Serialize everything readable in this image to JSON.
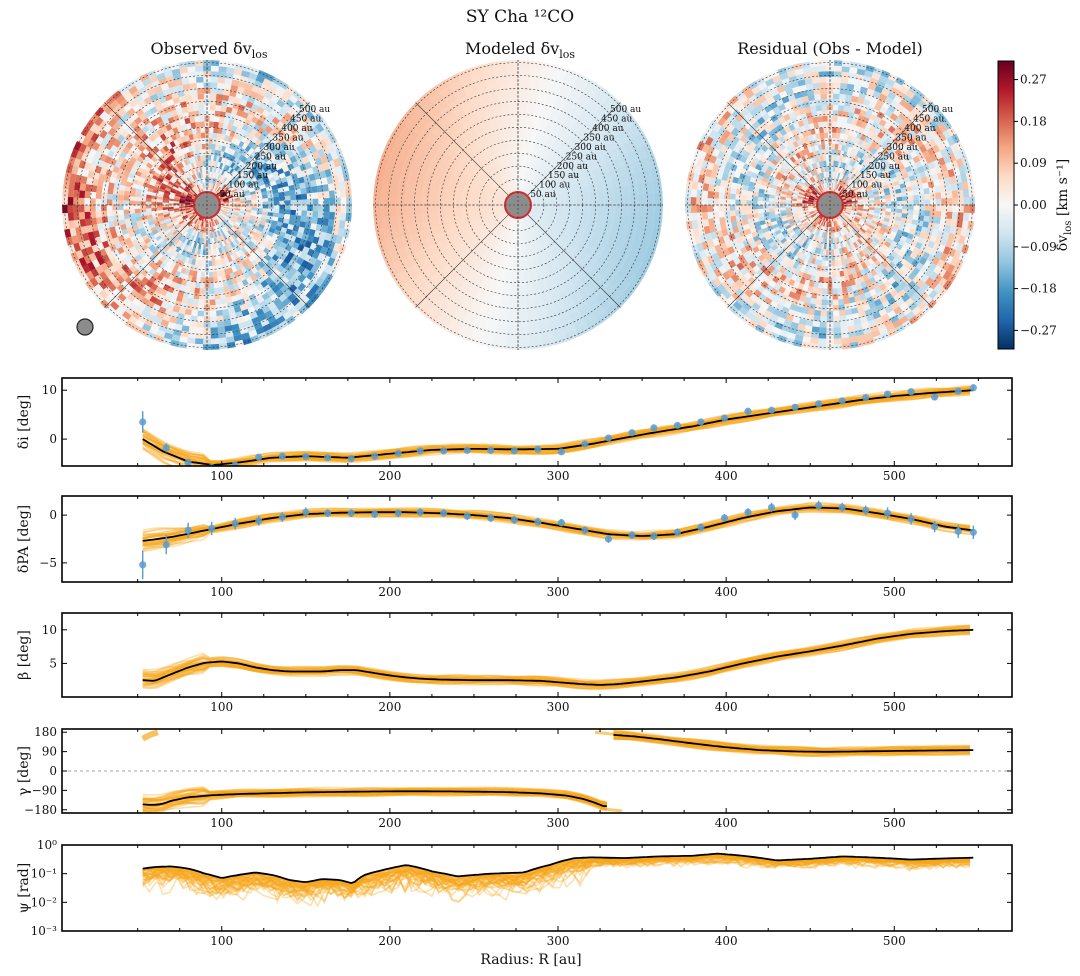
{
  "figure": {
    "title": "SY Cha ¹²CO",
    "maps": [
      {
        "title": "Observed δv",
        "sub": "los",
        "kind": "observed"
      },
      {
        "title": "Modeled δv",
        "sub": "los",
        "kind": "model"
      },
      {
        "title": "Residual (Obs - Model)",
        "sub": "",
        "kind": "residual"
      }
    ],
    "ring_labels": [
      "500 au",
      "450 au",
      "400 au",
      "350 au",
      "300 au",
      "250 au",
      "200 au",
      "150 au",
      "100 au",
      "50 au"
    ],
    "colorbar": {
      "label": "δv",
      "label_sub": "los",
      "label_units": "[km s⁻¹]",
      "ticks": [
        "0.27",
        "0.18",
        "0.09",
        "0.00",
        "−0.09",
        "−0.18",
        "−0.27"
      ],
      "tick_values": [
        0.27,
        0.18,
        0.09,
        0.0,
        -0.09,
        -0.18,
        -0.27
      ],
      "range": [
        -0.31,
        0.31
      ],
      "colors": [
        "#053061",
        "#2166ac",
        "#4393c3",
        "#92c5de",
        "#d1e5f0",
        "#f7f7f7",
        "#fddbc7",
        "#f4a582",
        "#d6604d",
        "#b2182b",
        "#67001f"
      ]
    },
    "xlabel": "Radius: R [au]",
    "xticks": [
      "100",
      "200",
      "300",
      "400",
      "500"
    ],
    "colors": {
      "band": "#f7a61b",
      "points": "#5b9bcf",
      "line": "#000000"
    }
  },
  "chart_data": [
    {
      "type": "line",
      "ylabel": "δi [deg]",
      "xlim": [
        5,
        570
      ],
      "ylim": [
        -5.5,
        12.5
      ],
      "yticks": [
        "10",
        "0"
      ],
      "ytick_values": [
        10,
        0
      ],
      "series": [
        {
          "name": "model",
          "x": [
            53,
            65,
            80,
            95,
            110,
            130,
            150,
            175,
            200,
            225,
            250,
            275,
            300,
            320,
            340,
            360,
            380,
            400,
            420,
            440,
            460,
            480,
            500,
            520,
            547
          ],
          "y": [
            0,
            -2.5,
            -4.6,
            -5.3,
            -4.8,
            -3.8,
            -3.5,
            -3.8,
            -3,
            -2.2,
            -2,
            -2.1,
            -2,
            -1,
            0.3,
            1.5,
            2.6,
            4,
            5,
            6,
            7,
            8,
            8.8,
            9.4,
            10
          ]
        },
        {
          "name": "observed",
          "x": [
            53,
            67,
            80,
            94,
            108,
            122,
            136,
            150,
            163,
            177,
            191,
            205,
            218,
            232,
            246,
            260,
            274,
            288,
            302,
            316,
            330,
            344,
            357,
            371,
            385,
            399,
            413,
            427,
            441,
            455,
            469,
            483,
            496,
            510,
            524,
            538,
            547
          ],
          "y": [
            3.5,
            -1.8,
            -4.8,
            -5.8,
            -5.3,
            -3.7,
            -3.5,
            -3.6,
            -3.8,
            -4,
            -3.5,
            -2.9,
            -2.4,
            -2.4,
            -2.3,
            -2.3,
            -2.4,
            -2.1,
            -2.6,
            -1,
            0.2,
            1.3,
            2.3,
            2.8,
            3.5,
            4.3,
            5.7,
            5.9,
            6.5,
            7.2,
            7.8,
            8.5,
            9.2,
            9.7,
            8.6,
            9.8,
            10.5
          ],
          "err": [
            2.2,
            0.9,
            0.7,
            0.6,
            0.5,
            0.5,
            0.5,
            0.4,
            0.4,
            0.4,
            0.4,
            0.4,
            0.4,
            0.4,
            0.4,
            0.4,
            0.4,
            0.4,
            0.4,
            0.4,
            0.4,
            0.4,
            0.4,
            0.4,
            0.4,
            0.4,
            0.4,
            0.4,
            0.4,
            0.4,
            0.4,
            0.4,
            0.4,
            0.4,
            0.6,
            0.5,
            0.6
          ]
        }
      ]
    },
    {
      "type": "line",
      "ylabel": "δPA [deg]",
      "xlim": [
        5,
        570
      ],
      "ylim": [
        -7,
        2
      ],
      "yticks": [
        "0",
        "−5"
      ],
      "ytick_values": [
        0,
        -5
      ],
      "series": [
        {
          "name": "model",
          "x": [
            53,
            70,
            90,
            110,
            130,
            150,
            170,
            190,
            210,
            230,
            250,
            270,
            290,
            310,
            330,
            350,
            370,
            390,
            410,
            430,
            450,
            470,
            490,
            510,
            530,
            547
          ],
          "y": [
            -2.7,
            -2.3,
            -1.6,
            -0.9,
            -0.3,
            0.1,
            0.25,
            0.3,
            0.3,
            0.2,
            0,
            -0.3,
            -0.8,
            -1.4,
            -2,
            -2.2,
            -2,
            -1.2,
            -0.3,
            0.4,
            0.8,
            0.7,
            0.2,
            -0.4,
            -1.2,
            -1.6
          ]
        },
        {
          "name": "observed",
          "x": [
            53,
            67,
            80,
            94,
            108,
            122,
            136,
            150,
            163,
            177,
            191,
            205,
            218,
            232,
            246,
            260,
            274,
            288,
            302,
            316,
            330,
            344,
            357,
            371,
            385,
            399,
            413,
            427,
            441,
            455,
            469,
            483,
            496,
            510,
            524,
            538,
            547
          ],
          "y": [
            -5.2,
            -3.1,
            -1.6,
            -1.4,
            -0.9,
            -0.6,
            -0.2,
            0.3,
            0.2,
            0.2,
            0.1,
            0.2,
            0.3,
            0.2,
            -0.1,
            -0.3,
            -0.5,
            -0.7,
            -0.8,
            -1.6,
            -2.5,
            -2.1,
            -2.2,
            -1.8,
            -1.3,
            -0.3,
            0.3,
            0.8,
            0,
            1,
            0.8,
            0.5,
            0.2,
            -0.4,
            -1.2,
            -1.7,
            -1.8
          ],
          "err": [
            1.5,
            1,
            0.8,
            0.7,
            0.6,
            0.5,
            0.5,
            0.5,
            0.4,
            0.4,
            0.4,
            0.4,
            0.4,
            0.4,
            0.4,
            0.4,
            0.4,
            0.4,
            0.4,
            0.4,
            0.4,
            0.4,
            0.4,
            0.4,
            0.4,
            0.4,
            0.4,
            0.5,
            0.5,
            0.5,
            0.5,
            0.5,
            0.6,
            0.6,
            0.6,
            0.7,
            0.7
          ]
        }
      ]
    },
    {
      "type": "line",
      "ylabel": "β [deg]",
      "xlim": [
        5,
        570
      ],
      "ylim": [
        0,
        12.5
      ],
      "yticks": [
        "10",
        "5"
      ],
      "ytick_values": [
        10,
        5
      ],
      "series": [
        {
          "name": "model",
          "x": [
            53,
            60,
            70,
            80,
            90,
            100,
            110,
            120,
            130,
            140,
            150,
            160,
            170,
            180,
            190,
            200,
            210,
            220,
            230,
            250,
            270,
            290,
            305,
            315,
            325,
            335,
            350,
            370,
            390,
            410,
            430,
            450,
            470,
            490,
            510,
            530,
            547
          ],
          "y": [
            2.5,
            2.4,
            3.4,
            4.4,
            5.1,
            5.3,
            5,
            4.4,
            4,
            3.8,
            3.8,
            3.8,
            4,
            4,
            3.6,
            3.2,
            2.9,
            2.7,
            2.6,
            2.5,
            2.5,
            2.4,
            2.1,
            1.9,
            1.8,
            1.9,
            2.3,
            2.9,
            3.8,
            5,
            6,
            6.8,
            7.7,
            8.7,
            9.4,
            9.8,
            10
          ]
        }
      ]
    },
    {
      "type": "line",
      "ylabel": "γ [deg]",
      "xlim": [
        5,
        570
      ],
      "ylim": [
        -195,
        195
      ],
      "yticks": [
        "180",
        "90",
        "0",
        "−90",
        "−180"
      ],
      "ytick_values": [
        180,
        90,
        0,
        -90,
        -180
      ],
      "series": [
        {
          "name": "model_low",
          "x": [
            53,
            58,
            62,
            66,
            70,
            80,
            95,
            110,
            130,
            150,
            180,
            210,
            240,
            270,
            290,
            305,
            315,
            320,
            325,
            328,
            330
          ],
          "y": [
            -155,
            -158,
            -156,
            -150,
            -138,
            -122,
            -112,
            -107,
            -103,
            -99,
            -96,
            -94,
            -95,
            -98,
            -104,
            -114,
            -130,
            -142,
            -157,
            -166,
            -160
          ]
        },
        {
          "name": "model_high",
          "x": [
            333,
            345,
            360,
            380,
            400,
            420,
            440,
            460,
            480,
            500,
            520,
            547
          ],
          "y": [
            168,
            161,
            148,
            128,
            110,
            97,
            91,
            89,
            91,
            93,
            95,
            97
          ]
        }
      ]
    },
    {
      "type": "line",
      "ylabel": "ψ [rad]",
      "xlim": [
        5,
        570
      ],
      "ylim_log10": [
        -3,
        0
      ],
      "yticks": [
        "10⁰",
        "10⁻¹",
        "10⁻²",
        "10⁻³"
      ],
      "ytick_values": [
        1,
        0.1,
        0.01,
        0.001
      ],
      "series": [
        {
          "name": "model",
          "x": [
            53,
            60,
            70,
            80,
            90,
            100,
            110,
            120,
            130,
            140,
            150,
            160,
            170,
            178,
            185,
            195,
            210,
            225,
            240,
            260,
            280,
            295,
            310,
            320,
            340,
            360,
            380,
            395,
            410,
            430,
            450,
            470,
            490,
            510,
            530,
            547
          ],
          "y": [
            0.15,
            0.17,
            0.18,
            0.15,
            0.1,
            0.07,
            0.09,
            0.11,
            0.09,
            0.06,
            0.05,
            0.065,
            0.06,
            0.045,
            0.09,
            0.13,
            0.2,
            0.12,
            0.08,
            0.1,
            0.11,
            0.2,
            0.35,
            0.37,
            0.35,
            0.4,
            0.42,
            0.5,
            0.42,
            0.29,
            0.33,
            0.4,
            0.36,
            0.31,
            0.34,
            0.36
          ]
        }
      ]
    }
  ]
}
